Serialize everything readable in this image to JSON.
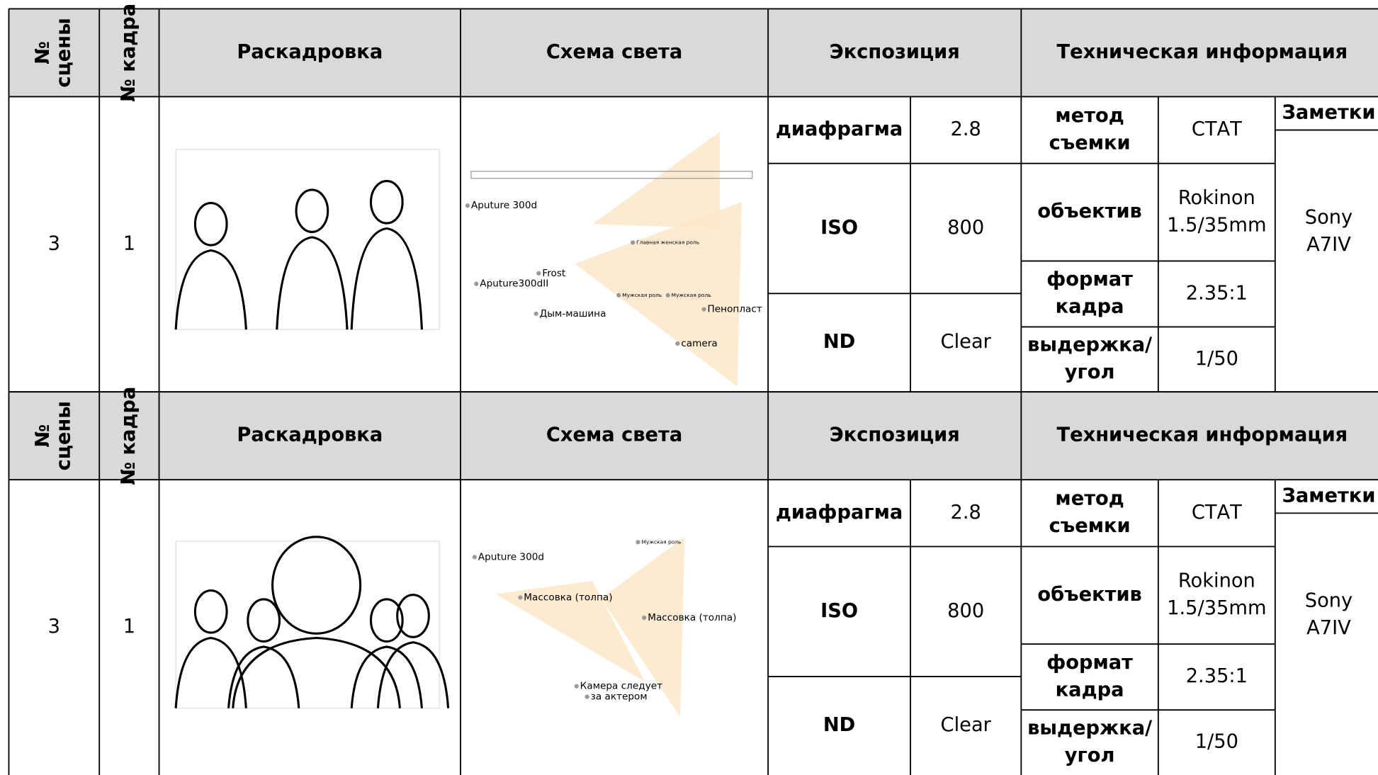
{
  "blocks": [
    {
      "header": {
        "scene": [
          "№",
          "сцены"
        ],
        "frame": "№ кадра",
        "storyboard": "Раскадровка",
        "light": "Схема света",
        "exposure": "Экспозиция",
        "tech": "Техническая информация"
      },
      "scene": "3",
      "frame": "1",
      "exposure": [
        {
          "label": "диафрагма",
          "value": "2.8"
        },
        {
          "label": "ISO",
          "value": "800"
        },
        {
          "label": "ND",
          "value": "Clear"
        }
      ],
      "tech": [
        {
          "label": [
            "метод",
            "съемки"
          ],
          "value": [
            "СТАТ"
          ]
        },
        {
          "label": [
            "объектив"
          ],
          "value": [
            "Rokinon",
            "1.5/35mm"
          ]
        },
        {
          "label": [
            "формат",
            "кадра"
          ],
          "value": [
            "2.35:1"
          ]
        },
        {
          "label": [
            "выдержка/",
            "угол"
          ],
          "value": [
            "1/50"
          ]
        }
      ],
      "notes_label": "Заметки",
      "notes": [
        "Sony",
        "A7IV"
      ],
      "light_labels": [
        "Aputure 300d",
        "Frost",
        "Aputure300dII",
        "Дым-машина",
        "Пенопласт",
        "camera",
        "Главная женская роль",
        "Мужская роль",
        "Мужская роль"
      ]
    },
    {
      "header": {
        "scene": [
          "№",
          "сцены"
        ],
        "frame": "№ кадра",
        "storyboard": "Раскадровка",
        "light": "Схема света",
        "exposure": "Экспозиция",
        "tech": "Техническая информация"
      },
      "scene": "3",
      "frame": "1",
      "exposure": [
        {
          "label": "диафрагма",
          "value": "2.8"
        },
        {
          "label": "ISO",
          "value": "800"
        },
        {
          "label": "ND",
          "value": "Clear"
        }
      ],
      "tech": [
        {
          "label": [
            "метод",
            "съемки"
          ],
          "value": [
            "СТАТ"
          ]
        },
        {
          "label": [
            "объектив"
          ],
          "value": [
            "Rokinon",
            "1.5/35mm"
          ]
        },
        {
          "label": [
            "формат",
            "кадра"
          ],
          "value": [
            "2.35:1"
          ]
        },
        {
          "label": [
            "выдержка/",
            "угол"
          ],
          "value": [
            "1/50"
          ]
        }
      ],
      "notes_label": "Заметки",
      "notes": [
        "Sony",
        "A7IV"
      ],
      "light_labels": [
        "Aputure 300d",
        "Массовка (толпа)",
        "Массовка (толпа)",
        "Мужская роль",
        "Камера следует",
        "за актером"
      ]
    }
  ]
}
